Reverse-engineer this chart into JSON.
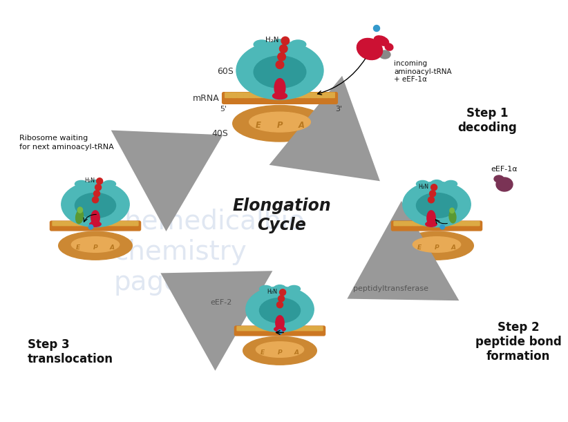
{
  "background_color": "#ffffff",
  "watermark_color": "#c8d4e8",
  "teal_60S": "#4db8b8",
  "teal_dark": "#2e9999",
  "teal_mid": "#3aadad",
  "orange_40S": "#cc8833",
  "orange_light": "#e8aa55",
  "mRNA_orange": "#cc7722",
  "mRNA_notch": "#ddaa44",
  "red_tRNA": "#cc1133",
  "green_tRNA": "#5a9933",
  "green_light": "#7ab844",
  "red_sphere": "#cc2222",
  "blue_sphere": "#3399cc",
  "dark_purple": "#7a3355",
  "crimson_inc": "#cc1133",
  "arrow_color": "#999999",
  "text_dark": "#111111",
  "EPA_color": "#b87820",
  "step1_title": "Step 1\ndecoding",
  "step2_title": "Step 2\npeptide bond\nformation",
  "step3_title": "Step 3\ntranslocation",
  "center_title": "Elongation\nCycle",
  "label_60S": "60S",
  "label_40S": "40S",
  "label_mRNA": "mRNA",
  "label_5p": "5'",
  "label_3p": "3'",
  "incoming_label": "incoming\naminoacyl-tRNA\n+ eEF-1α",
  "ribosome_waiting": "Ribosome waiting\nfor next aminoacyl-tRNA",
  "eEF1a_label": "eEF-1α",
  "eEF2_label": "eEF-2",
  "peptidyl_label": "peptidyltransferase",
  "H2N_label": "H₂N"
}
